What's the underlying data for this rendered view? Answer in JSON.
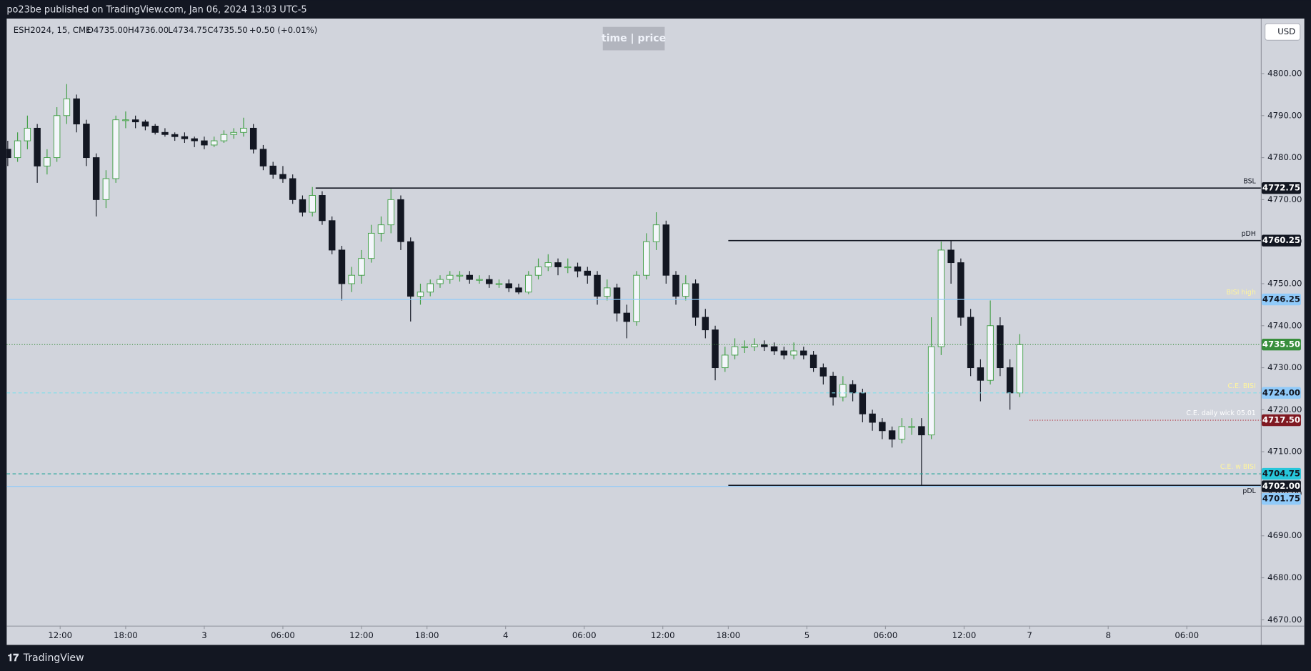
{
  "header": {
    "title": "po23be published on TradingView.com, Jan 06, 2024 13:03 UTC-5"
  },
  "legend": {
    "symbol": "ESH2024, 15, CME",
    "open": "O4735.00",
    "high": "H4736.00",
    "low": "L4734.75",
    "close": "C4735.50",
    "change": "+0.50 (+0.01%)"
  },
  "toolbar": {
    "watermark": "time | price",
    "currency": "USD"
  },
  "footer": {
    "brand": "TradingView"
  },
  "chart_data": {
    "type": "candlestick",
    "x": [
      0,
      3,
      6,
      9,
      12,
      15,
      18,
      21,
      24,
      27,
      30,
      33,
      36,
      39,
      42,
      45,
      48,
      51,
      54,
      57,
      60,
      63,
      66,
      69,
      72,
      75,
      78,
      81,
      84,
      87,
      90,
      93,
      96,
      99,
      102,
      105,
      108,
      111,
      114,
      117,
      120,
      123,
      126,
      129,
      132,
      135,
      138,
      141,
      144,
      147,
      150,
      153,
      156,
      159,
      162,
      165,
      168,
      171,
      174,
      177,
      180,
      183,
      186,
      189,
      192,
      195,
      198,
      201,
      204,
      207,
      210,
      213,
      216,
      219,
      222,
      225,
      228,
      231,
      234,
      237,
      240,
      243,
      246,
      249,
      252,
      255,
      258,
      261,
      264,
      267,
      270,
      273,
      276,
      279,
      282,
      285,
      288,
      291,
      294,
      297,
      300,
      303,
      306,
      309
    ],
    "candles": [
      [
        4782,
        4784,
        4778,
        4780
      ],
      [
        4780,
        4786,
        4779,
        4784
      ],
      [
        4784,
        4790,
        4782,
        4787
      ],
      [
        4787,
        4788,
        4774,
        4778
      ],
      [
        4778,
        4782,
        4776,
        4780
      ],
      [
        4780,
        4792,
        4779,
        4790
      ],
      [
        4790,
        4797.5,
        4788,
        4794
      ],
      [
        4794,
        4795,
        4786,
        4788
      ],
      [
        4788,
        4789,
        4778,
        4780
      ],
      [
        4780,
        4781,
        4766,
        4770
      ],
      [
        4770,
        4777,
        4768,
        4775
      ],
      [
        4775,
        4790,
        4774,
        4789
      ],
      [
        4789,
        4791,
        4787,
        4789
      ],
      [
        4789,
        4790,
        4787,
        4788.5
      ],
      [
        4788.5,
        4789,
        4786.5,
        4787.5
      ],
      [
        4787.5,
        4788,
        4785.5,
        4786
      ],
      [
        4786,
        4787,
        4785,
        4785.5
      ],
      [
        4785.5,
        4786,
        4784,
        4785
      ],
      [
        4785,
        4786,
        4783.5,
        4784.5
      ],
      [
        4784.5,
        4785,
        4782.5,
        4784
      ],
      [
        4784,
        4785,
        4782,
        4783
      ],
      [
        4783,
        4785,
        4782.5,
        4784
      ],
      [
        4784,
        4786.5,
        4783.5,
        4785.5
      ],
      [
        4785.5,
        4787,
        4784.5,
        4786
      ],
      [
        4786,
        4789.5,
        4785,
        4787
      ],
      [
        4787,
        4788,
        4781,
        4782
      ],
      [
        4782,
        4783,
        4777,
        4778
      ],
      [
        4778,
        4779,
        4775,
        4776
      ],
      [
        4776,
        4778,
        4774,
        4775
      ],
      [
        4775,
        4776,
        4769,
        4770
      ],
      [
        4770,
        4771,
        4766,
        4767
      ],
      [
        4767,
        4773,
        4766,
        4771
      ],
      [
        4771,
        4772,
        4764,
        4765
      ],
      [
        4765,
        4766,
        4757,
        4758
      ],
      [
        4758,
        4759,
        4746,
        4750
      ],
      [
        4750,
        4754,
        4748,
        4752
      ],
      [
        4752,
        4758,
        4750,
        4756
      ],
      [
        4756,
        4764,
        4755,
        4762
      ],
      [
        4762,
        4766,
        4760,
        4764
      ],
      [
        4764,
        4772.5,
        4762,
        4770
      ],
      [
        4770,
        4771,
        4758,
        4760
      ],
      [
        4760,
        4761,
        4741,
        4747
      ],
      [
        4747,
        4750,
        4745,
        4748
      ],
      [
        4748,
        4751,
        4747,
        4750
      ],
      [
        4750,
        4752,
        4749,
        4751
      ],
      [
        4751,
        4753,
        4750,
        4752
      ],
      [
        4752,
        4753,
        4750.5,
        4752
      ],
      [
        4752,
        4753,
        4750,
        4751
      ],
      [
        4751,
        4752,
        4750,
        4751
      ],
      [
        4751,
        4752,
        4749,
        4750
      ],
      [
        4750,
        4751,
        4749,
        4750
      ],
      [
        4750,
        4751,
        4748,
        4749
      ],
      [
        4749,
        4750,
        4747.5,
        4748
      ],
      [
        4748,
        4753,
        4747.5,
        4752
      ],
      [
        4752,
        4756,
        4751,
        4754
      ],
      [
        4754,
        4757,
        4753,
        4755
      ],
      [
        4755,
        4756,
        4752,
        4754
      ],
      [
        4754,
        4756,
        4752.5,
        4754
      ],
      [
        4754,
        4755,
        4751.5,
        4753
      ],
      [
        4753,
        4754,
        4750,
        4752
      ],
      [
        4752,
        4753,
        4745,
        4747
      ],
      [
        4747,
        4751,
        4746,
        4749
      ],
      [
        4749,
        4750,
        4741,
        4743
      ],
      [
        4743,
        4745,
        4737,
        4741
      ],
      [
        4741,
        4753,
        4740,
        4752
      ],
      [
        4752,
        4762,
        4751,
        4760
      ],
      [
        4760,
        4767,
        4758,
        4764
      ],
      [
        4764,
        4765,
        4750,
        4752
      ],
      [
        4752,
        4753,
        4745,
        4747
      ],
      [
        4747,
        4752,
        4746,
        4750
      ],
      [
        4750,
        4751,
        4740,
        4742
      ],
      [
        4742,
        4744,
        4737,
        4739
      ],
      [
        4739,
        4740,
        4727,
        4730
      ],
      [
        4730,
        4735,
        4729,
        4733
      ],
      [
        4733,
        4737,
        4732,
        4735
      ],
      [
        4735,
        4736.5,
        4733.5,
        4735
      ],
      [
        4735,
        4737,
        4734,
        4735.5
      ],
      [
        4735.5,
        4736.5,
        4734,
        4735
      ],
      [
        4735,
        4736,
        4733,
        4734
      ],
      [
        4734,
        4735,
        4732,
        4733
      ],
      [
        4733,
        4736,
        4732,
        4734
      ],
      [
        4734,
        4735,
        4732,
        4733
      ],
      [
        4733,
        4734,
        4729,
        4730
      ],
      [
        4730,
        4731,
        4726,
        4728
      ],
      [
        4728,
        4729,
        4721,
        4723
      ],
      [
        4723,
        4728,
        4722,
        4726
      ],
      [
        4726,
        4727,
        4722,
        4724
      ],
      [
        4724,
        4725,
        4717,
        4719
      ],
      [
        4719,
        4720,
        4715,
        4717
      ],
      [
        4717,
        4718,
        4713,
        4715
      ],
      [
        4715,
        4716,
        4711,
        4713
      ],
      [
        4713,
        4718,
        4712,
        4716
      ],
      [
        4716,
        4718,
        4714,
        4716
      ],
      [
        4716,
        4718,
        4702,
        4714
      ],
      [
        4714,
        4742,
        4713,
        4735
      ],
      [
        4735,
        4760,
        4733,
        4758
      ],
      [
        4758,
        4760.25,
        4750,
        4755
      ],
      [
        4755,
        4756,
        4740,
        4742
      ],
      [
        4742,
        4744,
        4728,
        4730
      ],
      [
        4730,
        4732,
        4722,
        4727
      ],
      [
        4727,
        4746,
        4726,
        4740
      ],
      [
        4740,
        4742,
        4728,
        4730
      ],
      [
        4730,
        4732,
        4720,
        4724
      ],
      [
        4724,
        4738,
        4723,
        4735.5
      ]
    ],
    "up_color": "#f4f6fb",
    "up_wick": "#43a047",
    "down_color": "#131722",
    "xlim": [
      -0.33,
      382.6
    ],
    "xticks": [
      {
        "value": 16,
        "label": "12:00"
      },
      {
        "value": 36,
        "label": "18:00"
      },
      {
        "value": 60,
        "label": "3"
      },
      {
        "value": 84,
        "label": "06:00"
      },
      {
        "value": 108,
        "label": "12:00"
      },
      {
        "value": 128,
        "label": "18:00"
      },
      {
        "value": 152,
        "label": "4"
      },
      {
        "value": 176,
        "label": "06:00"
      },
      {
        "value": 200,
        "label": "12:00"
      },
      {
        "value": 220,
        "label": "18:00"
      },
      {
        "value": 244,
        "label": "5"
      },
      {
        "value": 268,
        "label": "06:00"
      },
      {
        "value": 292,
        "label": "12:00"
      },
      {
        "value": 312,
        "label": "7"
      },
      {
        "value": 336,
        "label": "8"
      },
      {
        "value": 360,
        "label": "06:00"
      }
    ],
    "ylim": [
      4668.6,
      4812.7
    ],
    "yticks": [
      {
        "value": 4670,
        "label": "4670.00"
      },
      {
        "value": 4680,
        "label": "4680.00"
      },
      {
        "value": 4690,
        "label": "4690.00"
      },
      {
        "value": 4700,
        "label": "4700.00"
      },
      {
        "value": 4710,
        "label": "4710.00"
      },
      {
        "value": 4720,
        "label": "4720.00"
      },
      {
        "value": 4730,
        "label": "4730.00"
      },
      {
        "value": 4740,
        "label": "4740.00"
      },
      {
        "value": 4750,
        "label": "4750.00"
      },
      {
        "value": 4760,
        "label": "4760.00"
      },
      {
        "value": 4770,
        "label": "4770.00"
      },
      {
        "value": 4780,
        "label": "4780.00"
      },
      {
        "value": 4790,
        "label": "4790.00"
      },
      {
        "value": 4800,
        "label": "4800.00"
      }
    ],
    "grid": false,
    "levels": [
      {
        "name": "BSL",
        "value": 4772.75,
        "start": 94,
        "style": "solid",
        "color": "#131722",
        "tag_color": "#131722",
        "tag_text": "#ffffff",
        "name_color": "#131722"
      },
      {
        "name": "pDH",
        "value": 4760.25,
        "start": 220,
        "style": "solid",
        "color": "#131722",
        "tag_color": "#131722",
        "tag_text": "#ffffff",
        "name_color": "#131722"
      },
      {
        "name": "BISI high",
        "value": 4746.25,
        "style": "solid",
        "color": "#90caf9",
        "tag_color": "#90caf9",
        "tag_text": "#131722",
        "name_color": "#fff59d"
      },
      {
        "value": 4735.5,
        "value_label": "4735.50",
        "style": "dotted",
        "color": "#388e3c",
        "tag_color": "#388e3c",
        "tag_text": "#ffffff"
      },
      {
        "name": "C.E. BISI",
        "value": 4724,
        "value_label": "4724.00",
        "style": "dashed",
        "color": "#80deea",
        "tag_color": "#90caf9",
        "tag_text": "#131722",
        "name_color": "#fff59d"
      },
      {
        "name": "C.E. daily wick 05.01",
        "value": 4717.5,
        "value_label": "4717.50",
        "start": 312,
        "style": "dotted",
        "color": "#b22833",
        "tag_color": "#801922",
        "tag_text": "#ffffff",
        "name_color": "#ffffff"
      },
      {
        "name": "C.E. w BISI",
        "value": 4704.75,
        "style": "dashed",
        "color": "#26a69a",
        "tag_color": "#26c6da",
        "tag_text": "#131722",
        "name_color": "#fff59d"
      },
      {
        "name": "pDL",
        "value": 4702,
        "value_label": "4702.00",
        "start": 220,
        "style": "solid",
        "color": "#131722",
        "tag_color": "#131722",
        "tag_text": "#ffffff",
        "name_color": "#131722",
        "name_side": "below"
      },
      {
        "value": 4701.75,
        "style": "solid",
        "color": "#90caf9",
        "tag_color": "#90caf9",
        "tag_text": "#131722"
      }
    ]
  }
}
